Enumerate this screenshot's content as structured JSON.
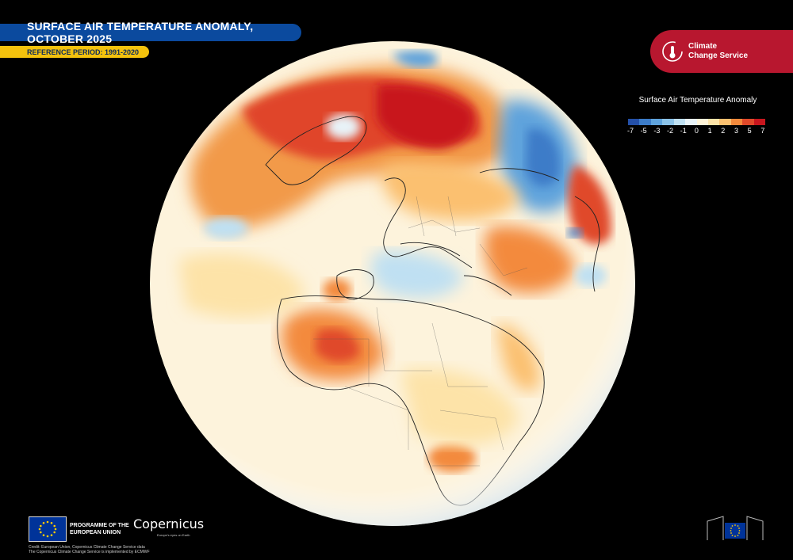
{
  "header": {
    "title": "SURFACE AIR TEMPERATURE ANOMALY, OCTOBER 2025",
    "reference": "REFERENCE PERIOD: 1991-2020"
  },
  "badge": {
    "line1": "Climate",
    "line2": "Change Service"
  },
  "legend": {
    "title": "Surface Air Temperature Anomaly",
    "ticks": [
      "-7",
      "-5",
      "-3",
      "-2",
      "-1",
      "0",
      "1",
      "2",
      "3",
      "5",
      "7"
    ],
    "colors": [
      "#2450a8",
      "#3c7cc8",
      "#5fa3dc",
      "#8cc3e8",
      "#bfe0f2",
      "#e8f3f8",
      "#fff4d8",
      "#fde3a8",
      "#fbc070",
      "#f38a3c",
      "#e0492a",
      "#c7161e"
    ]
  },
  "footer": {
    "programme_line1": "PROGRAMME OF THE",
    "programme_line2": "EUROPEAN UNION",
    "copernicus": "Copernicus",
    "copernicus_sub": "Europe's eyes on Earth",
    "credit_line1": "Credit: European Union, Copernicus Climate Change Service data",
    "credit_line2": "The Copernicus Climate Change Service is implemented by ECMWF"
  },
  "colors": {
    "title_bar": "#0b4a9e",
    "ref_bar": "#f4c20d",
    "badge": "#b8172f",
    "globe_base": "#fdf3dc"
  }
}
